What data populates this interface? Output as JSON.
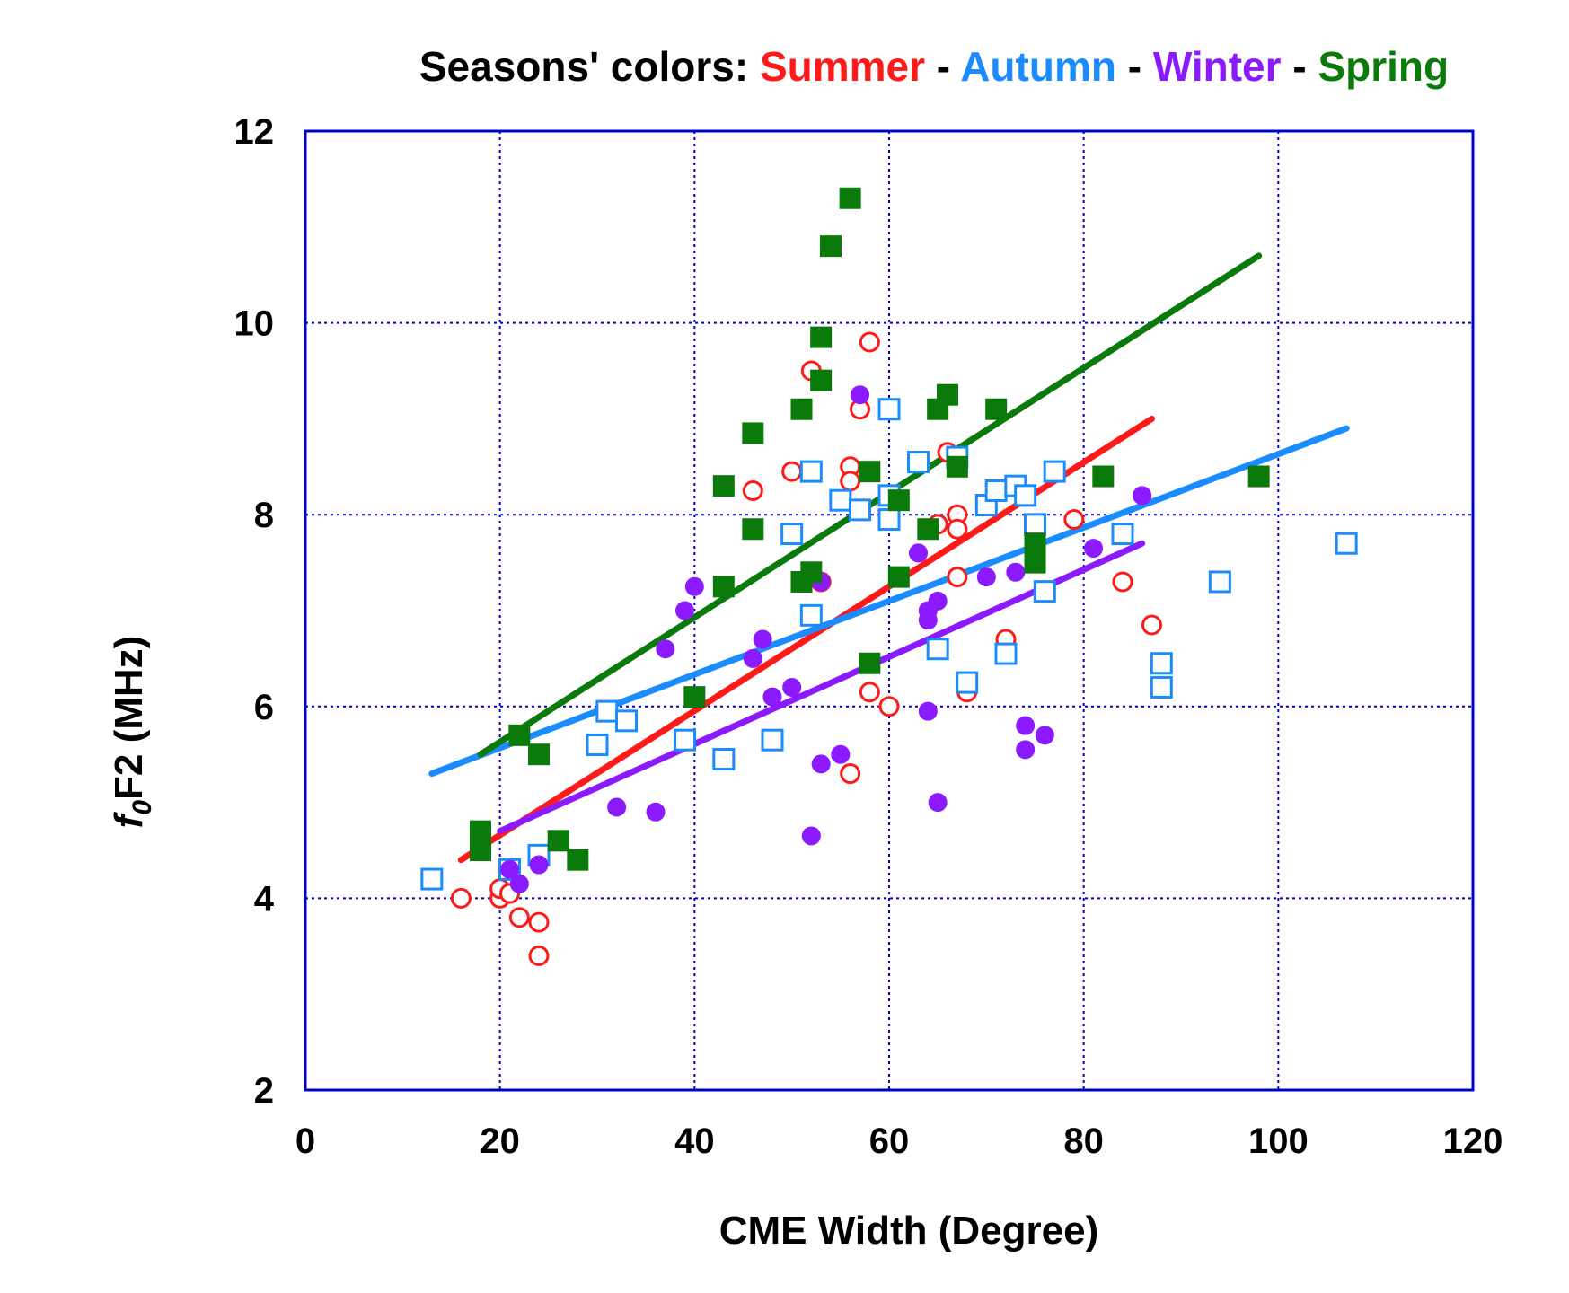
{
  "chart_data": {
    "type": "scatter",
    "title": {
      "prefix": "Seasons' colors:",
      "separator": "-",
      "entries": [
        {
          "name": "Summer",
          "color": "#ff1a1a"
        },
        {
          "name": "Autumn",
          "color": "#1a8cff"
        },
        {
          "name": "Winter",
          "color": "#8c1aff"
        },
        {
          "name": "Spring",
          "color": "#0a7a0a"
        }
      ]
    },
    "xlabel": "CME Width (Degree)",
    "ylabel": {
      "f": "f",
      "sub": "0",
      "rest": "F2 (MHz)"
    },
    "xlim": [
      0,
      120
    ],
    "ylim": [
      2,
      12
    ],
    "xticks": [
      0,
      20,
      40,
      60,
      80,
      100,
      120
    ],
    "yticks": [
      2,
      4,
      6,
      8,
      10,
      12
    ],
    "grid": true,
    "colors": {
      "frame": "#0000cc",
      "grid": "#0000cc"
    },
    "series": [
      {
        "name": "Summer",
        "color": "#ff1a1a",
        "marker": "open-circle",
        "points": [
          [
            16,
            4.0
          ],
          [
            20,
            4.0
          ],
          [
            20,
            4.1
          ],
          [
            21,
            4.05
          ],
          [
            22,
            3.8
          ],
          [
            24,
            3.75
          ],
          [
            24,
            3.4
          ],
          [
            46,
            8.25
          ],
          [
            50,
            8.45
          ],
          [
            52,
            9.5
          ],
          [
            53,
            7.3
          ],
          [
            56,
            8.5
          ],
          [
            56,
            8.35
          ],
          [
            57,
            9.1
          ],
          [
            58,
            6.15
          ],
          [
            58,
            9.8
          ],
          [
            56,
            5.3
          ],
          [
            60,
            6.0
          ],
          [
            65,
            7.9
          ],
          [
            66,
            8.65
          ],
          [
            67,
            8.0
          ],
          [
            67,
            7.85
          ],
          [
            67,
            7.35
          ],
          [
            68,
            6.15
          ],
          [
            72,
            6.7
          ],
          [
            74,
            8.2
          ],
          [
            79,
            7.95
          ],
          [
            84,
            7.3
          ],
          [
            87,
            6.85
          ]
        ],
        "fit": [
          [
            16,
            4.4
          ],
          [
            87,
            9.0
          ]
        ]
      },
      {
        "name": "Autumn",
        "color": "#1a8cff",
        "marker": "open-square",
        "points": [
          [
            13,
            4.2
          ],
          [
            21,
            4.3
          ],
          [
            24,
            4.45
          ],
          [
            30,
            5.6
          ],
          [
            31,
            5.95
          ],
          [
            33,
            5.85
          ],
          [
            39,
            5.65
          ],
          [
            43,
            5.45
          ],
          [
            48,
            5.65
          ],
          [
            50,
            7.8
          ],
          [
            52,
            8.45
          ],
          [
            52,
            6.95
          ],
          [
            55,
            8.15
          ],
          [
            57,
            8.05
          ],
          [
            60,
            8.2
          ],
          [
            60,
            7.95
          ],
          [
            60,
            9.1
          ],
          [
            63,
            8.55
          ],
          [
            65,
            6.6
          ],
          [
            67,
            8.6
          ],
          [
            68,
            6.25
          ],
          [
            70,
            8.1
          ],
          [
            71,
            8.25
          ],
          [
            72,
            6.55
          ],
          [
            73,
            8.3
          ],
          [
            74,
            8.2
          ],
          [
            75,
            7.9
          ],
          [
            76,
            7.2
          ],
          [
            77,
            8.45
          ],
          [
            84,
            7.8
          ],
          [
            88,
            6.45
          ],
          [
            88,
            6.2
          ],
          [
            94,
            7.3
          ],
          [
            107,
            7.7
          ]
        ],
        "fit": [
          [
            13,
            5.3
          ],
          [
            107,
            8.9
          ]
        ]
      },
      {
        "name": "Winter",
        "color": "#8c1aff",
        "marker": "filled-circle",
        "points": [
          [
            21,
            4.3
          ],
          [
            22,
            4.15
          ],
          [
            24,
            4.35
          ],
          [
            32,
            4.95
          ],
          [
            36,
            4.9
          ],
          [
            37,
            6.6
          ],
          [
            39,
            7.0
          ],
          [
            40,
            7.25
          ],
          [
            46,
            6.5
          ],
          [
            47,
            6.7
          ],
          [
            48,
            6.1
          ],
          [
            50,
            6.2
          ],
          [
            52,
            4.65
          ],
          [
            53,
            5.4
          ],
          [
            53,
            7.3
          ],
          [
            55,
            5.5
          ],
          [
            57,
            9.25
          ],
          [
            63,
            7.6
          ],
          [
            64,
            7.0
          ],
          [
            64,
            6.9
          ],
          [
            64,
            5.95
          ],
          [
            65,
            5.0
          ],
          [
            65,
            7.1
          ],
          [
            70,
            7.35
          ],
          [
            73,
            7.4
          ],
          [
            74,
            5.55
          ],
          [
            74,
            5.8
          ],
          [
            76,
            5.7
          ],
          [
            81,
            7.65
          ],
          [
            86,
            8.2
          ]
        ],
        "fit": [
          [
            20,
            4.7
          ],
          [
            86,
            7.7
          ]
        ]
      },
      {
        "name": "Spring",
        "color": "#0a7a0a",
        "marker": "filled-square",
        "points": [
          [
            18,
            4.7
          ],
          [
            18,
            4.5
          ],
          [
            22,
            5.7
          ],
          [
            24,
            5.5
          ],
          [
            26,
            4.6
          ],
          [
            28,
            4.4
          ],
          [
            40,
            6.1
          ],
          [
            43,
            7.25
          ],
          [
            43,
            8.3
          ],
          [
            46,
            7.85
          ],
          [
            46,
            8.85
          ],
          [
            51,
            7.3
          ],
          [
            51,
            9.1
          ],
          [
            52,
            7.4
          ],
          [
            53,
            9.85
          ],
          [
            53,
            9.4
          ],
          [
            54,
            10.8
          ],
          [
            56,
            11.3
          ],
          [
            58,
            8.45
          ],
          [
            58,
            6.45
          ],
          [
            61,
            8.15
          ],
          [
            61,
            7.35
          ],
          [
            64,
            7.85
          ],
          [
            65,
            9.1
          ],
          [
            66,
            9.25
          ],
          [
            67,
            8.5
          ],
          [
            71,
            9.1
          ],
          [
            75,
            7.7
          ],
          [
            75,
            7.5
          ],
          [
            82,
            8.4
          ],
          [
            98,
            8.4
          ]
        ],
        "fit": [
          [
            18,
            5.5
          ],
          [
            98,
            10.7
          ]
        ]
      }
    ]
  }
}
